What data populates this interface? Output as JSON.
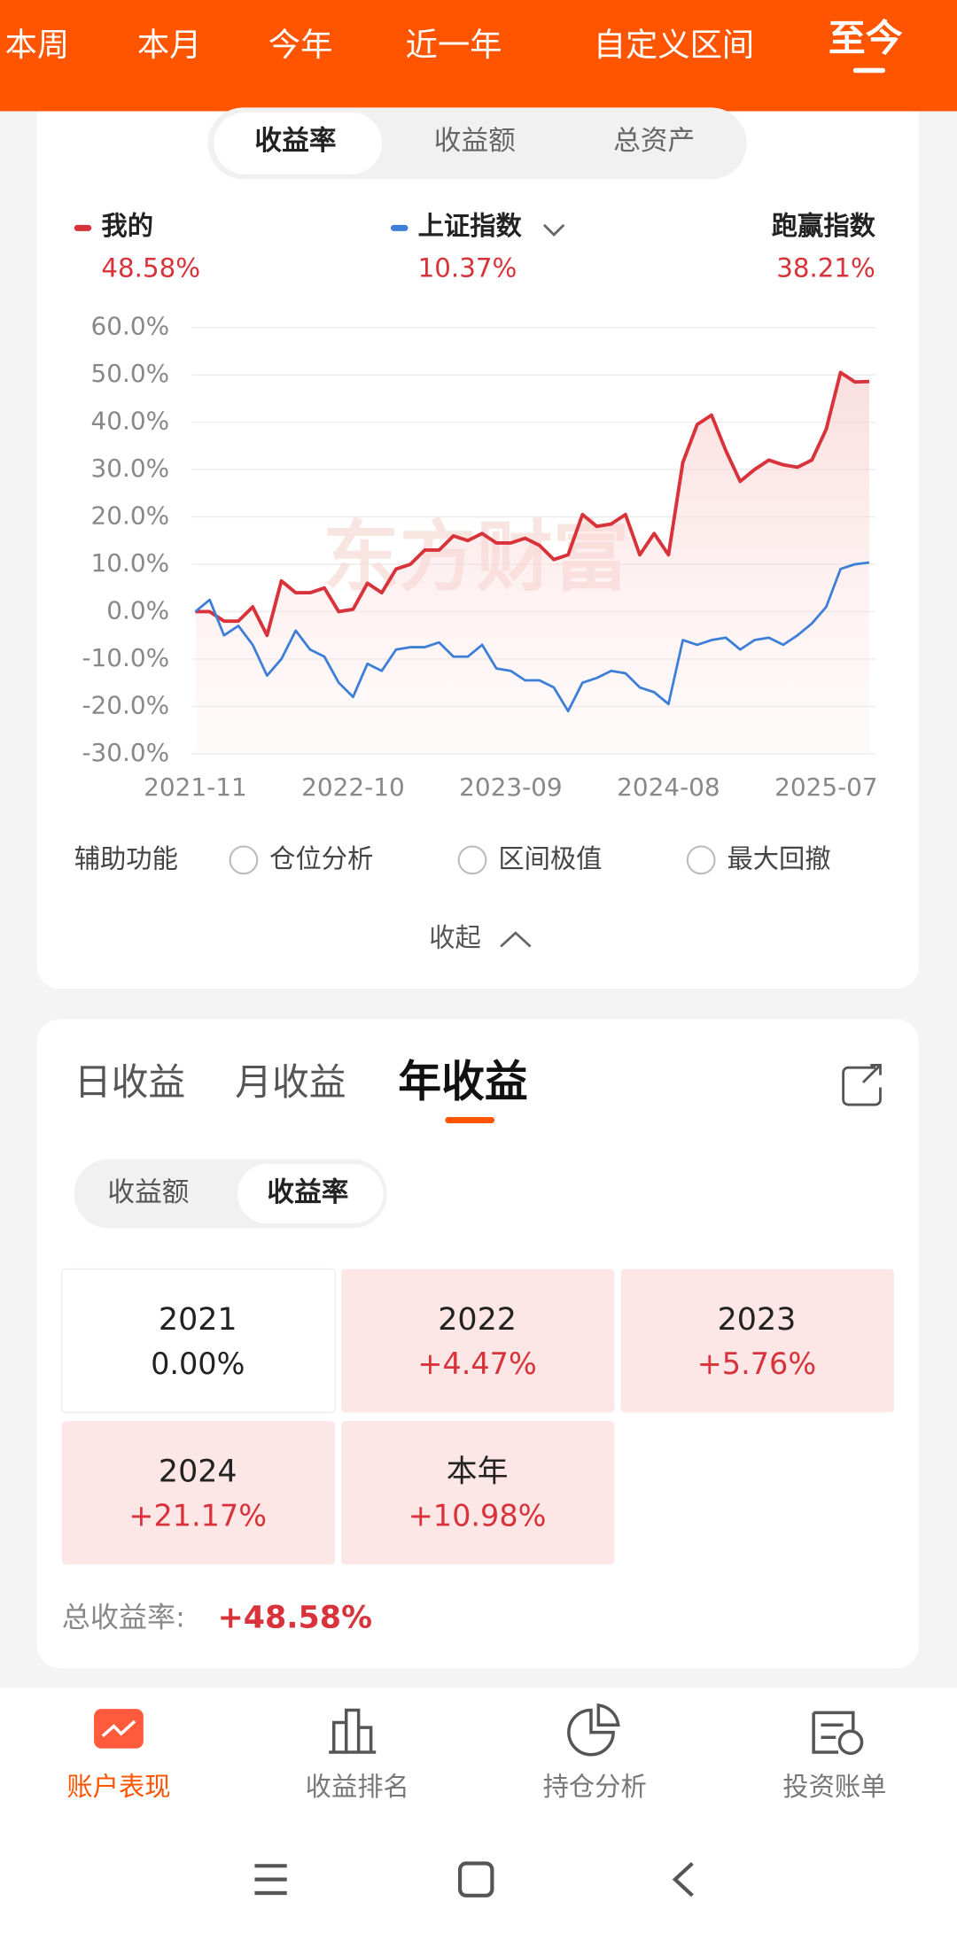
{
  "period_tabs": [
    "本周",
    "本月",
    "今年",
    "近一年",
    "自定义区间",
    "至今"
  ],
  "metric_tabs": [
    "收益率",
    "收益额",
    "总资产"
  ],
  "chart_data": {
    "type": "line",
    "x": [
      "2021-11",
      "2021-12",
      "2022-01",
      "2022-02",
      "2022-03",
      "2022-04",
      "2022-05",
      "2022-06",
      "2022-07",
      "2022-08",
      "2022-09",
      "2022-10",
      "2022-11",
      "2022-12",
      "2023-01",
      "2023-02",
      "2023-03",
      "2023-04",
      "2023-05",
      "2023-06",
      "2023-07",
      "2023-08",
      "2023-09",
      "2023-10",
      "2023-11",
      "2023-12",
      "2024-01",
      "2024-02",
      "2024-03",
      "2024-04",
      "2024-05",
      "2024-06",
      "2024-07",
      "2024-08",
      "2024-09",
      "2024-10",
      "2024-11",
      "2024-12",
      "2025-01",
      "2025-02",
      "2025-03",
      "2025-04",
      "2025-05",
      "2025-06",
      "2025-07",
      "2025-08",
      "2025-09",
      "2025-10"
    ],
    "xticks": [
      "2021-11",
      "2022-10",
      "2023-09",
      "2024-08",
      "2025-07"
    ],
    "ylim": [
      -30,
      60
    ],
    "yticks": [
      {
        "value": -30,
        "label": "-30.0%"
      },
      {
        "value": -20,
        "label": "-20.0%"
      },
      {
        "value": -10,
        "label": "-10.0%"
      },
      {
        "value": 0,
        "label": "0.0%"
      },
      {
        "value": 10,
        "label": "10.0%"
      },
      {
        "value": 20,
        "label": "20.0%"
      },
      {
        "value": 30,
        "label": "30.0%"
      },
      {
        "value": 40,
        "label": "40.0%"
      },
      {
        "value": 50,
        "label": "50.0%"
      },
      {
        "value": 60,
        "label": "60.0%"
      }
    ],
    "grid": true,
    "area_under": "series.0",
    "series": [
      {
        "name": "我的",
        "color": "#d8323a",
        "summary_label": "48.58%",
        "values": [
          0,
          0,
          -2,
          -2,
          1,
          -5,
          6.5,
          4,
          4,
          5,
          0,
          0.5,
          6,
          4,
          9,
          10,
          13,
          13,
          16,
          15,
          16.5,
          14.5,
          14.5,
          15.5,
          14,
          11,
          12,
          20.5,
          18,
          18.5,
          20.5,
          12,
          16.5,
          12,
          31.5,
          39.5,
          41.5,
          34,
          27.5,
          30,
          32,
          31,
          30.5,
          32,
          38.5,
          50.5,
          48.5,
          48.58
        ]
      },
      {
        "name": "上证指数",
        "color": "#3d7fd6",
        "summary_label": "10.37%",
        "values": [
          0,
          2.5,
          -5,
          -3,
          -7,
          -13.5,
          -10,
          -4,
          -8,
          -9.5,
          -15,
          -18,
          -11,
          -12.5,
          -8,
          -7.5,
          -7.5,
          -6.5,
          -9.5,
          -9.5,
          -7,
          -12,
          -12.5,
          -14.5,
          -14.5,
          -16,
          -21,
          -15,
          -14,
          -12.5,
          -13,
          -16,
          -17,
          -19.5,
          -6,
          -7,
          -6,
          -5.5,
          -8,
          -6,
          -5.5,
          -7,
          -5,
          -2.5,
          1,
          9,
          10,
          10.37
        ]
      }
    ],
    "outperform": {
      "name": "跑赢指数",
      "value_label": "38.21%"
    },
    "watermark": "东方财富"
  },
  "aux": {
    "title": "辅助功能",
    "options": [
      "仓位分析",
      "区间极值",
      "最大回撤"
    ]
  },
  "collapse": "收起",
  "return_tabs": [
    "日收益",
    "月收益",
    "年收益"
  ],
  "return_metric_tabs": [
    "收益额",
    "收益率"
  ],
  "annual_returns": [
    {
      "label": "2021",
      "value_label": "0.00%"
    },
    {
      "label": "2022",
      "value_label": "+4.47%"
    },
    {
      "label": "2023",
      "value_label": "+5.76%"
    },
    {
      "label": "2024",
      "value_label": "+21.17%"
    },
    {
      "label": "本年",
      "value_label": "+10.98%"
    }
  ],
  "total": {
    "label": "总收益率:",
    "value_label": "+48.58%"
  },
  "nav": [
    "账户表现",
    "收益排名",
    "持仓分析",
    "投资账单"
  ]
}
